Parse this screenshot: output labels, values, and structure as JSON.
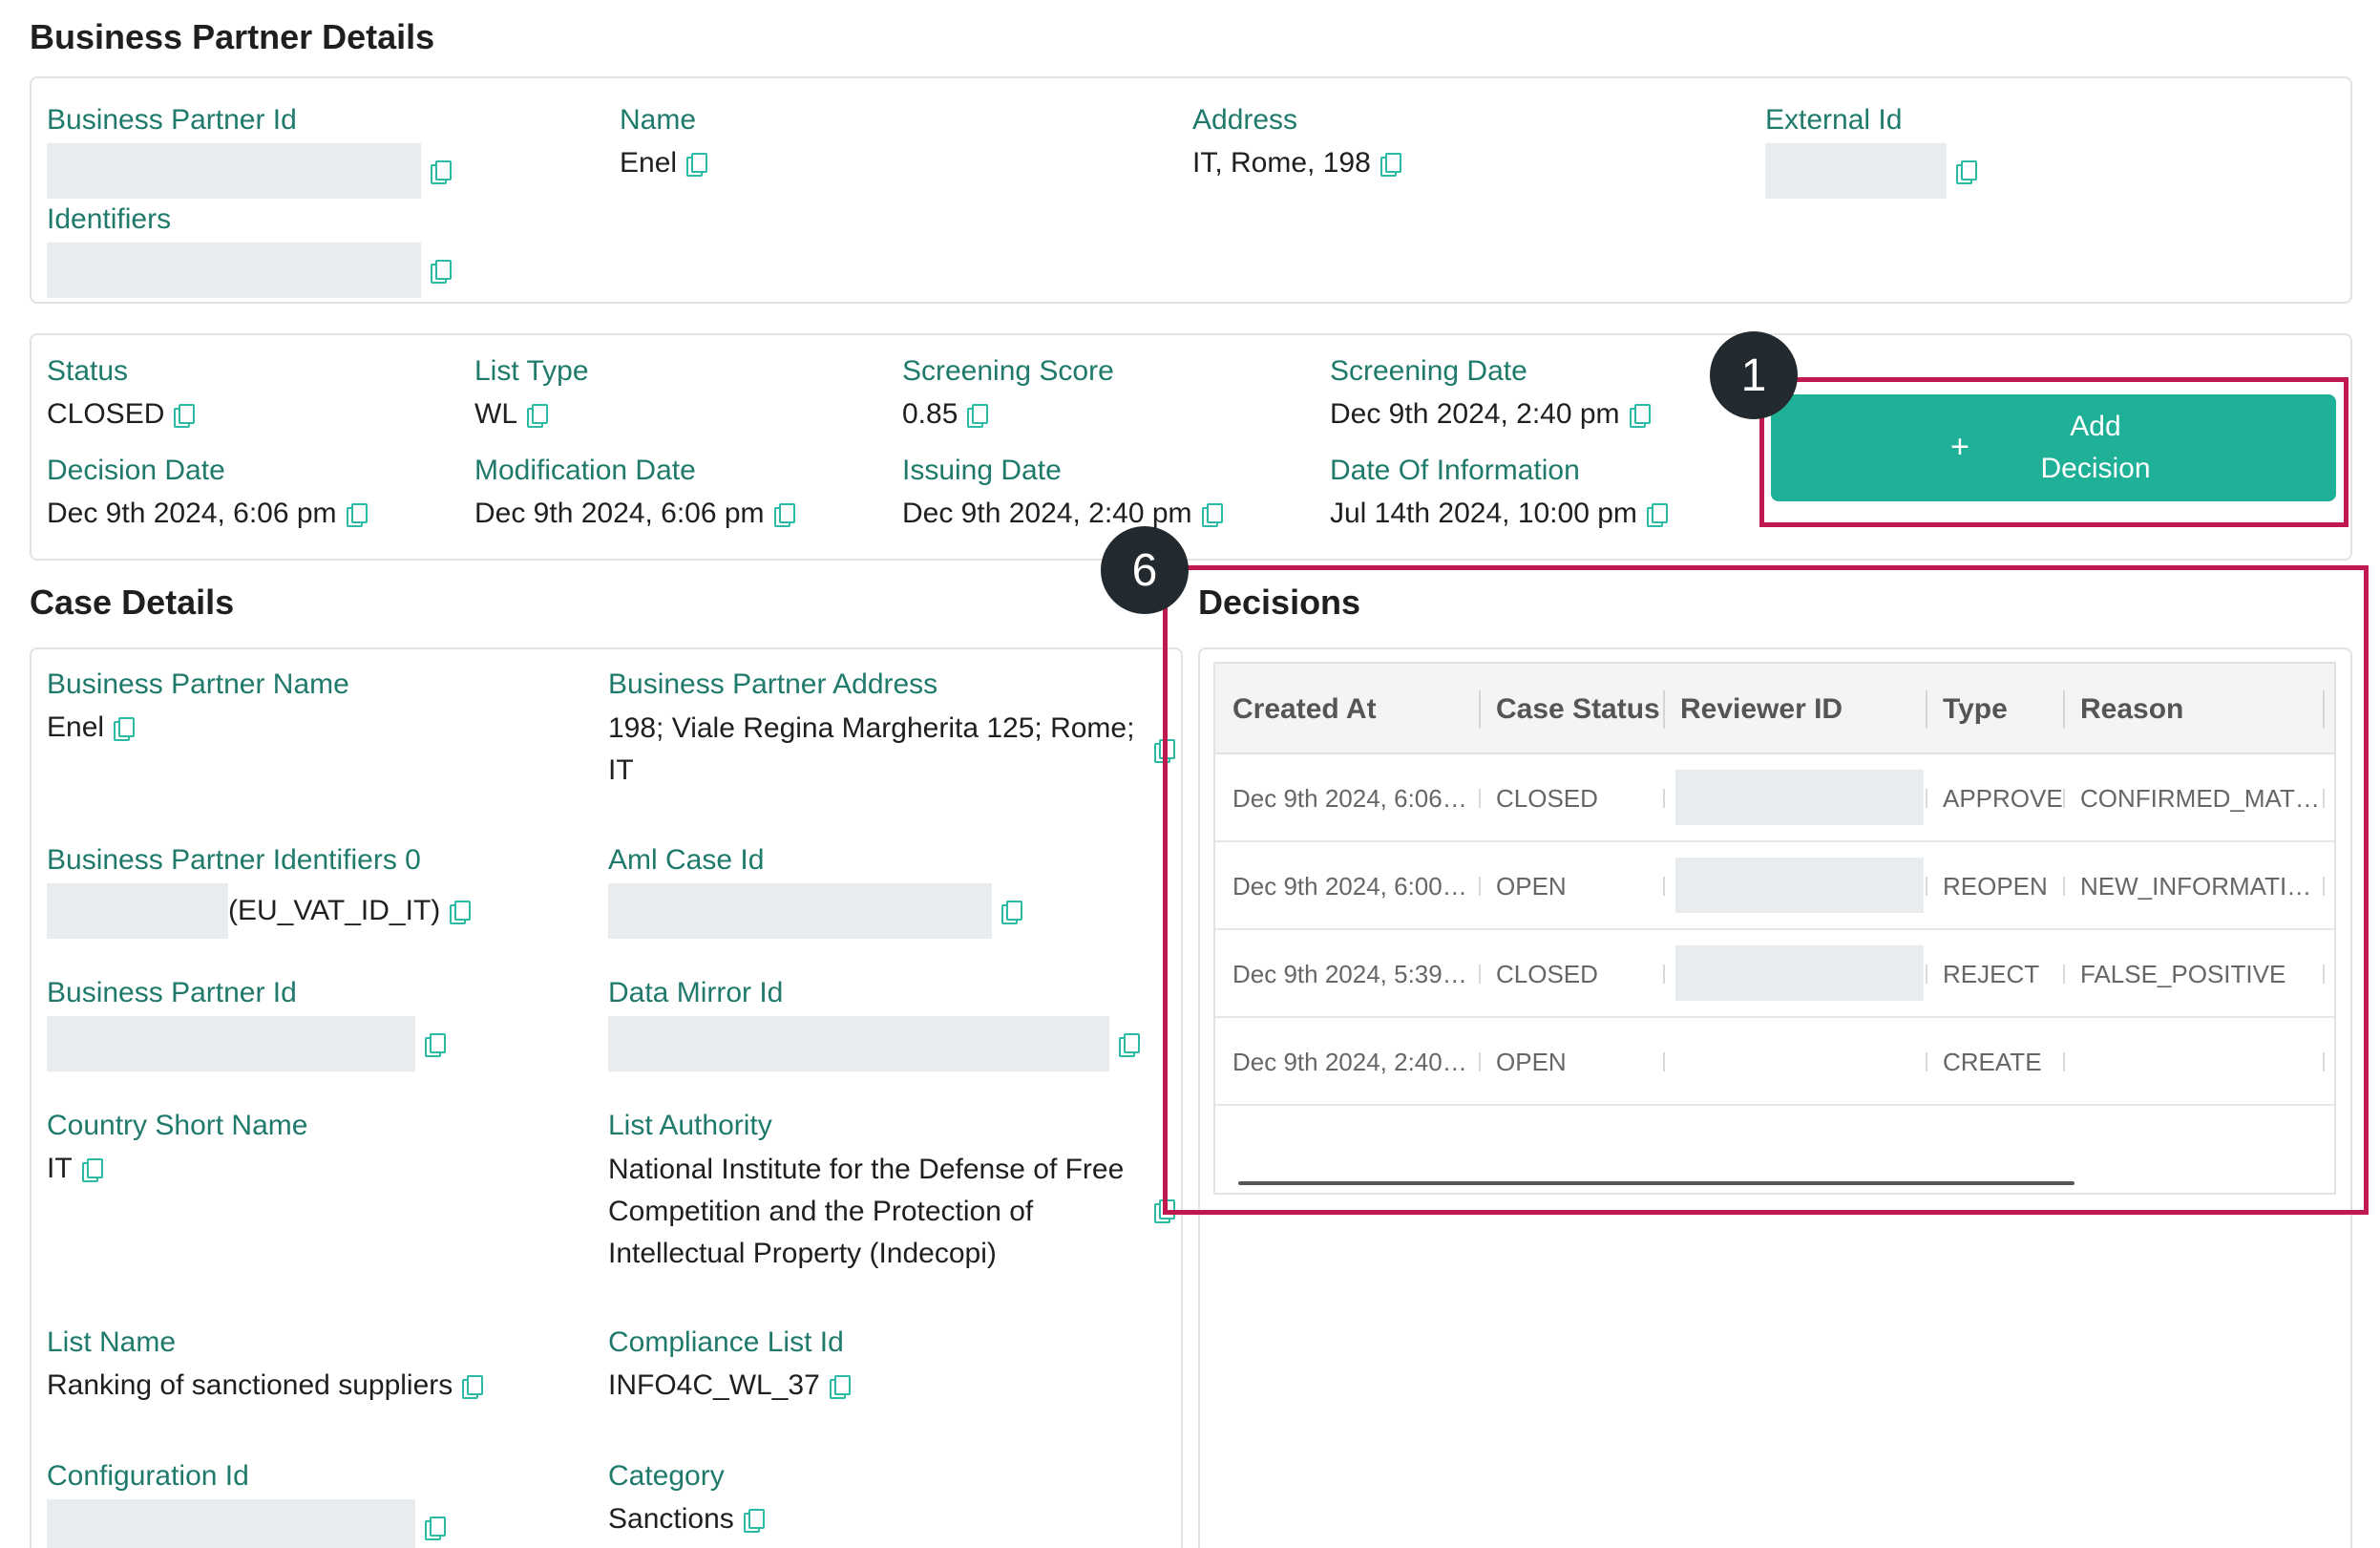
{
  "bp_details": {
    "title": "Business Partner Details",
    "bp_id_label": "Business Partner Id",
    "name_label": "Name",
    "name_value": "Enel",
    "address_label": "Address",
    "address_value": "IT, Rome, 198",
    "external_id_label": "External Id",
    "identifiers_label": "Identifiers"
  },
  "screening": {
    "status_label": "Status",
    "status_value": "CLOSED",
    "list_type_label": "List Type",
    "list_type_value": "WL",
    "score_label": "Screening Score",
    "score_value": "0.85",
    "screening_date_label": "Screening Date",
    "screening_date_value": "Dec 9th 2024, 2:40 pm",
    "decision_date_label": "Decision Date",
    "decision_date_value": "Dec 9th 2024, 6:06 pm",
    "modification_date_label": "Modification Date",
    "modification_date_value": "Dec 9th 2024, 6:06 pm",
    "issuing_date_label": "Issuing Date",
    "issuing_date_value": "Dec 9th 2024, 2:40 pm",
    "info_date_label": "Date Of Information",
    "info_date_value": "Jul 14th 2024, 10:00 pm"
  },
  "add_decision": {
    "plus": "+",
    "line1": "Add",
    "line2": "Decision",
    "color": "#1fb197"
  },
  "annotations": {
    "badge1": "1",
    "badge6": "6",
    "highlight_color": "#c0194f"
  },
  "case_details": {
    "title": "Case Details",
    "bp_name_label": "Business Partner Name",
    "bp_name_value": "Enel",
    "bp_address_label": "Business Partner Address",
    "bp_address_value": "198; Viale Regina Margherita 125; Rome; IT",
    "bp_identifiers_label": "Business Partner Identifiers 0",
    "bp_identifiers_suffix": "(EU_VAT_ID_IT)",
    "aml_case_label": "Aml Case Id",
    "bp_id_label": "Business Partner Id",
    "data_mirror_label": "Data Mirror Id",
    "country_label": "Country Short Name",
    "country_value": "IT",
    "list_authority_label": "List Authority",
    "list_authority_value": "National Institute for the Defense of Free Competition and the Protection of Intellectual Property (Indecopi)",
    "list_name_label": "List Name",
    "list_name_value": "Ranking of sanctioned suppliers",
    "compliance_label": "Compliance List Id",
    "compliance_value": "INFO4C_WL_37",
    "config_label": "Configuration Id",
    "category_label": "Category",
    "category_value": "Sanctions"
  },
  "decisions": {
    "title": "Decisions",
    "columns": [
      "Created At",
      "Case Status",
      "Reviewer ID",
      "Type",
      "Reason"
    ],
    "rows": [
      {
        "created": "Dec 9th 2024, 6:06 ...",
        "status": "CLOSED",
        "type": "APPROVE",
        "reason": "CONFIRMED_MATCH"
      },
      {
        "created": "Dec 9th 2024, 6:00 ...",
        "status": "OPEN",
        "type": "REOPEN",
        "reason": "NEW_INFORMATIO..."
      },
      {
        "created": "Dec 9th 2024, 5:39 ...",
        "status": "CLOSED",
        "type": "REJECT",
        "reason": "FALSE_POSITIVE"
      },
      {
        "created": "Dec 9th 2024, 2:40 ...",
        "status": "OPEN",
        "type": "CREATE",
        "reason": ""
      }
    ]
  }
}
